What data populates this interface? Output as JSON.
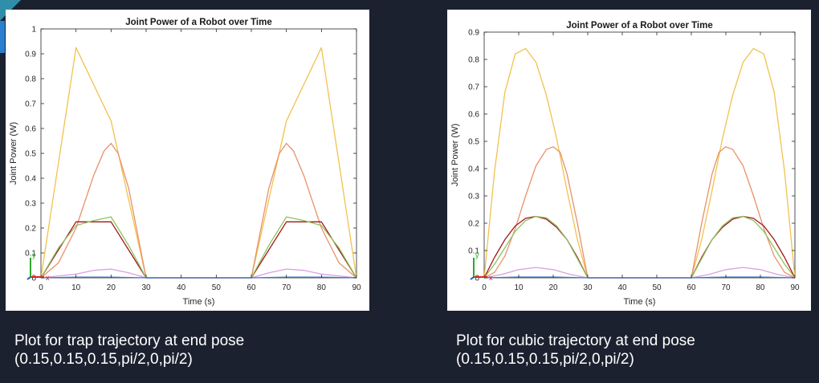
{
  "slide": {
    "left_caption": {
      "line1": "Plot for trap trajectory at end pose",
      "line2": "(0.15,0.15,0.15,pi/2,0,pi/2)"
    },
    "right_caption": {
      "line1": "Plot for cubic trajectory at end pose",
      "line2": "(0.15,0.15,0.15,pi/2,0,pi/2)"
    }
  },
  "colors": {
    "background": "#1c2130",
    "series": [
      "#f2c14e",
      "#e8906a",
      "#a0141c",
      "#8dc35a",
      "#d7a1e0",
      "#3c78c8"
    ]
  },
  "chart_data": [
    {
      "type": "line",
      "title": "Joint Power of a Robot over Time",
      "xlabel": "Time (s)",
      "ylabel": "Joint Power (W)",
      "xlim": [
        0,
        90
      ],
      "ylim": [
        0,
        1
      ],
      "xticks": [
        0,
        10,
        20,
        30,
        40,
        50,
        60,
        70,
        80,
        90
      ],
      "yticks": [
        0,
        0.1,
        0.2,
        0.3,
        0.4,
        0.5,
        0.6,
        0.7,
        0.8,
        0.9,
        1
      ],
      "grid": false,
      "axes_triad": {
        "x": "x",
        "y": "y"
      },
      "series": [
        {
          "x": [
            0,
            10,
            20,
            30,
            40,
            50,
            60,
            70,
            80,
            90
          ],
          "y": [
            0,
            0.925,
            0.63,
            0,
            0,
            0,
            0,
            0.63,
            0.925,
            0
          ]
        },
        {
          "x": [
            0,
            5,
            10,
            15,
            18,
            20,
            22,
            25,
            30,
            40,
            50,
            60,
            65,
            68,
            70,
            72,
            75,
            80,
            85,
            90
          ],
          "y": [
            0,
            0.06,
            0.2,
            0.41,
            0.51,
            0.54,
            0.5,
            0.36,
            0,
            0,
            0,
            0,
            0.36,
            0.5,
            0.54,
            0.51,
            0.41,
            0.2,
            0.06,
            0
          ]
        },
        {
          "x": [
            0,
            10,
            20,
            30,
            40,
            50,
            60,
            70,
            80,
            90
          ],
          "y": [
            0,
            0.225,
            0.225,
            0,
            0,
            0,
            0,
            0.225,
            0.225,
            0
          ]
        },
        {
          "x": [
            0,
            5,
            10,
            15,
            20,
            25,
            30,
            40,
            50,
            60,
            65,
            70,
            75,
            80,
            85,
            90
          ],
          "y": [
            0,
            0.12,
            0.21,
            0.23,
            0.245,
            0.13,
            0,
            0,
            0,
            0,
            0.13,
            0.245,
            0.23,
            0.21,
            0.12,
            0
          ]
        },
        {
          "x": [
            0,
            10,
            15,
            20,
            25,
            30,
            40,
            50,
            60,
            65,
            70,
            75,
            80,
            90
          ],
          "y": [
            0,
            0.015,
            0.03,
            0.035,
            0.02,
            0,
            0,
            0,
            0,
            0.02,
            0.035,
            0.03,
            0.015,
            0
          ]
        },
        {
          "x": [
            0,
            10,
            20,
            30,
            60,
            70,
            80,
            90
          ],
          "y": [
            0,
            0.003,
            0.003,
            0,
            0,
            0.003,
            0.003,
            0
          ]
        }
      ]
    },
    {
      "type": "line",
      "title": "Joint Power of a Robot over Time",
      "xlabel": "Time (s)",
      "ylabel": "Joint Power (W)",
      "xlim": [
        0,
        90
      ],
      "ylim": [
        0,
        0.9
      ],
      "xticks": [
        0,
        10,
        20,
        30,
        40,
        50,
        60,
        70,
        80,
        90
      ],
      "yticks": [
        0,
        0.1,
        0.2,
        0.3,
        0.4,
        0.5,
        0.6,
        0.7,
        0.8,
        0.9
      ],
      "grid": false,
      "axes_triad": {
        "x": "x",
        "y": "y"
      },
      "series": [
        {
          "x": [
            0,
            3,
            6,
            9,
            12,
            15,
            18,
            21,
            24,
            27,
            30,
            40,
            50,
            60,
            63,
            66,
            69,
            72,
            75,
            78,
            81,
            84,
            87,
            90
          ],
          "y": [
            0,
            0.39,
            0.68,
            0.82,
            0.84,
            0.79,
            0.67,
            0.51,
            0.32,
            0.14,
            0,
            0,
            0,
            0,
            0.14,
            0.32,
            0.51,
            0.67,
            0.79,
            0.84,
            0.82,
            0.68,
            0.39,
            0
          ]
        },
        {
          "x": [
            0,
            3,
            6,
            9,
            12,
            15,
            18,
            20,
            22,
            24,
            27,
            30,
            40,
            50,
            60,
            63,
            66,
            68,
            70,
            72,
            75,
            78,
            81,
            84,
            87,
            90
          ],
          "y": [
            0,
            0.02,
            0.08,
            0.18,
            0.3,
            0.41,
            0.47,
            0.48,
            0.46,
            0.38,
            0.2,
            0,
            0,
            0,
            0,
            0.2,
            0.38,
            0.46,
            0.48,
            0.47,
            0.41,
            0.3,
            0.18,
            0.08,
            0.02,
            0
          ]
        },
        {
          "x": [
            0,
            3,
            6,
            9,
            12,
            15,
            18,
            21,
            24,
            27,
            30,
            40,
            50,
            60,
            63,
            66,
            69,
            72,
            75,
            78,
            81,
            84,
            87,
            90
          ],
          "y": [
            0,
            0.075,
            0.14,
            0.19,
            0.218,
            0.225,
            0.215,
            0.185,
            0.14,
            0.075,
            0,
            0,
            0,
            0,
            0.075,
            0.14,
            0.185,
            0.215,
            0.225,
            0.218,
            0.19,
            0.14,
            0.075,
            0
          ]
        },
        {
          "x": [
            0,
            3,
            6,
            9,
            12,
            15,
            18,
            21,
            24,
            27,
            30,
            40,
            50,
            60,
            63,
            66,
            69,
            72,
            75,
            78,
            81,
            84,
            87,
            90
          ],
          "y": [
            0,
            0.05,
            0.11,
            0.17,
            0.21,
            0.225,
            0.22,
            0.19,
            0.14,
            0.07,
            0,
            0,
            0,
            0,
            0.07,
            0.14,
            0.19,
            0.22,
            0.225,
            0.21,
            0.17,
            0.11,
            0.05,
            0
          ]
        },
        {
          "x": [
            0,
            5,
            10,
            15,
            20,
            25,
            30,
            40,
            50,
            60,
            65,
            70,
            75,
            80,
            85,
            90
          ],
          "y": [
            0,
            0.012,
            0.03,
            0.038,
            0.03,
            0.012,
            0,
            0,
            0,
            0,
            0.012,
            0.03,
            0.038,
            0.03,
            0.012,
            0
          ]
        },
        {
          "x": [
            0,
            10,
            20,
            30,
            60,
            70,
            80,
            90
          ],
          "y": [
            0,
            0.003,
            0.003,
            0,
            0,
            0.003,
            0.003,
            0
          ]
        }
      ]
    }
  ]
}
